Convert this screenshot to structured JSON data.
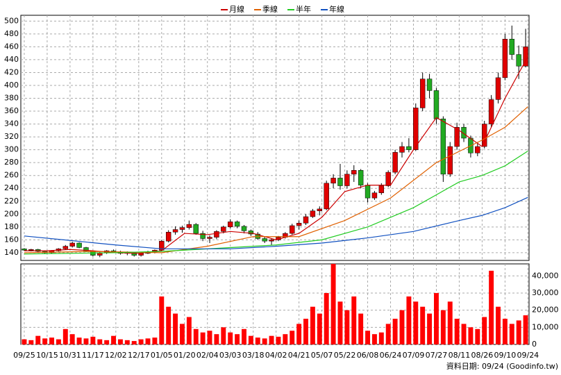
{
  "chart_data": {
    "type": "candlestick",
    "x": [
      0,
      3,
      6,
      9,
      12,
      15,
      18,
      21,
      24,
      27,
      30,
      33,
      36,
      39,
      42,
      45,
      48,
      51,
      54,
      57,
      60,
      63,
      66,
      69,
      72,
      75,
      78,
      81,
      84,
      87,
      90,
      93,
      96,
      99,
      102,
      105,
      108,
      111,
      114,
      117,
      120,
      123,
      126,
      129,
      132,
      135,
      138,
      141,
      144,
      147,
      150,
      153,
      156,
      159,
      162,
      165,
      168,
      171,
      174,
      177,
      180,
      183,
      186,
      189,
      192,
      195,
      198,
      201,
      204,
      207,
      210,
      213,
      216,
      219
    ],
    "ohlc": [
      [
        146,
        147,
        143,
        144
      ],
      [
        144,
        146,
        142,
        145
      ],
      [
        145,
        146,
        141,
        142
      ],
      [
        142,
        143,
        138,
        140
      ],
      [
        140,
        144,
        139,
        143
      ],
      [
        143,
        147,
        142,
        146
      ],
      [
        146,
        152,
        145,
        150
      ],
      [
        150,
        157,
        148,
        155
      ],
      [
        155,
        156,
        147,
        148
      ],
      [
        148,
        149,
        141,
        142
      ],
      [
        142,
        143,
        134,
        136
      ],
      [
        136,
        141,
        133,
        140
      ],
      [
        140,
        144,
        138,
        143
      ],
      [
        143,
        145,
        140,
        141
      ],
      [
        141,
        143,
        137,
        139
      ],
      [
        139,
        142,
        136,
        140
      ],
      [
        140,
        141,
        134,
        136
      ],
      [
        136,
        140,
        134,
        139
      ],
      [
        139,
        143,
        138,
        141
      ],
      [
        141,
        145,
        139,
        144
      ],
      [
        144,
        160,
        143,
        158
      ],
      [
        158,
        175,
        156,
        172
      ],
      [
        172,
        181,
        168,
        176
      ],
      [
        176,
        182,
        171,
        179
      ],
      [
        179,
        190,
        176,
        184
      ],
      [
        184,
        186,
        168,
        170
      ],
      [
        170,
        174,
        158,
        162
      ],
      [
        162,
        167,
        155,
        164
      ],
      [
        164,
        175,
        161,
        173
      ],
      [
        173,
        182,
        170,
        180
      ],
      [
        180,
        192,
        178,
        188
      ],
      [
        188,
        190,
        178,
        181
      ],
      [
        181,
        183,
        170,
        174
      ],
      [
        174,
        176,
        166,
        169
      ],
      [
        169,
        172,
        160,
        162
      ],
      [
        162,
        165,
        155,
        158
      ],
      [
        158,
        162,
        152,
        160
      ],
      [
        160,
        166,
        158,
        164
      ],
      [
        164,
        172,
        162,
        170
      ],
      [
        170,
        185,
        168,
        182
      ],
      [
        182,
        190,
        176,
        186
      ],
      [
        186,
        200,
        183,
        196
      ],
      [
        196,
        208,
        194,
        205
      ],
      [
        205,
        212,
        198,
        208
      ],
      [
        208,
        252,
        206,
        248
      ],
      [
        248,
        262,
        240,
        256
      ],
      [
        256,
        278,
        238,
        244
      ],
      [
        244,
        268,
        240,
        262
      ],
      [
        262,
        276,
        250,
        268
      ],
      [
        268,
        270,
        240,
        245
      ],
      [
        245,
        248,
        218,
        225
      ],
      [
        225,
        236,
        222,
        233
      ],
      [
        233,
        248,
        230,
        244
      ],
      [
        244,
        268,
        242,
        265
      ],
      [
        265,
        300,
        262,
        296
      ],
      [
        296,
        312,
        288,
        305
      ],
      [
        305,
        318,
        296,
        300
      ],
      [
        300,
        372,
        298,
        365
      ],
      [
        365,
        420,
        360,
        410
      ],
      [
        410,
        418,
        380,
        392
      ],
      [
        392,
        396,
        340,
        348
      ],
      [
        348,
        352,
        250,
        262
      ],
      [
        262,
        312,
        258,
        305
      ],
      [
        305,
        342,
        300,
        335
      ],
      [
        335,
        340,
        312,
        318
      ],
      [
        318,
        322,
        288,
        295
      ],
      [
        295,
        312,
        290,
        305
      ],
      [
        305,
        345,
        302,
        340
      ],
      [
        340,
        385,
        335,
        378
      ],
      [
        378,
        420,
        372,
        412
      ],
      [
        412,
        480,
        408,
        472
      ],
      [
        472,
        493,
        440,
        448
      ],
      [
        448,
        462,
        410,
        430
      ],
      [
        430,
        488,
        428,
        460
      ]
    ],
    "up_color": "#e00000",
    "down_color": "#22aa22",
    "volume": [
      3000,
      2500,
      5000,
      3500,
      4000,
      3000,
      9000,
      6000,
      4000,
      3500,
      4500,
      3000,
      2500,
      5000,
      3000,
      2500,
      2000,
      3000,
      3500,
      4000,
      28000,
      22000,
      18000,
      12000,
      16000,
      9000,
      7000,
      8000,
      6000,
      10000,
      7000,
      6000,
      9000,
      5000,
      4000,
      3500,
      5000,
      4500,
      6000,
      8000,
      12000,
      15000,
      22000,
      18000,
      30000,
      47000,
      25000,
      20000,
      28000,
      18000,
      8000,
      6000,
      7000,
      12000,
      15000,
      20000,
      28000,
      25000,
      22000,
      18000,
      30000,
      20000,
      25000,
      15000,
      12000,
      10000,
      9000,
      16000,
      43000,
      22000,
      15000,
      12000,
      14000,
      17000
    ],
    "volume_color": "#ff0000",
    "series": [
      {
        "name": "月線",
        "color": "#cc0000",
        "x": [
          0,
          10,
          20,
          30,
          40,
          50,
          60,
          70,
          80,
          90,
          100,
          110,
          120,
          130,
          140,
          150,
          160,
          170,
          180,
          190,
          200,
          210,
          220
        ],
        "values": [
          143,
          143,
          145,
          143,
          140,
          139,
          143,
          170,
          168,
          173,
          170,
          160,
          170,
          195,
          235,
          245,
          245,
          300,
          350,
          330,
          305,
          380,
          445
        ]
      },
      {
        "name": "季線",
        "color": "#e06000",
        "x": [
          0,
          30,
          60,
          80,
          100,
          120,
          140,
          160,
          180,
          200,
          210,
          220
        ],
        "values": [
          140,
          142,
          140,
          150,
          165,
          165,
          190,
          225,
          280,
          315,
          335,
          367
        ]
      },
      {
        "name": "半年",
        "color": "#22cc22",
        "x": [
          0,
          40,
          60,
          90,
          110,
          130,
          150,
          170,
          190,
          200,
          210,
          220
        ],
        "values": [
          138,
          140,
          142,
          148,
          152,
          160,
          180,
          210,
          250,
          260,
          275,
          298
        ]
      },
      {
        "name": "年線",
        "color": "#1050c0",
        "x": [
          0,
          20,
          40,
          60,
          90,
          110,
          130,
          150,
          170,
          190,
          200,
          210,
          220
        ],
        "values": [
          166,
          159,
          152,
          146,
          146,
          150,
          155,
          163,
          173,
          190,
          198,
          210,
          226
        ]
      }
    ],
    "xlim": [
      -1.5,
      220.5
    ],
    "xticks": [
      {
        "value": 0,
        "label": "09/25"
      },
      {
        "value": 10,
        "label": "10/15"
      },
      {
        "value": 20,
        "label": "10/31"
      },
      {
        "value": 30,
        "label": "11/17"
      },
      {
        "value": 40,
        "label": "12/02"
      },
      {
        "value": 50,
        "label": "12/17"
      },
      {
        "value": 60,
        "label": "01/05"
      },
      {
        "value": 70,
        "label": "01/20"
      },
      {
        "value": 80,
        "label": "02/04"
      },
      {
        "value": 90,
        "label": "03/03"
      },
      {
        "value": 100,
        "label": "03/18"
      },
      {
        "value": 110,
        "label": "04/02"
      },
      {
        "value": 120,
        "label": "04/21"
      },
      {
        "value": 130,
        "label": "05/07"
      },
      {
        "value": 140,
        "label": "05/22"
      },
      {
        "value": 150,
        "label": "06/08"
      },
      {
        "value": 160,
        "label": "06/24"
      },
      {
        "value": 170,
        "label": "07/09"
      },
      {
        "value": 180,
        "label": "07/27"
      },
      {
        "value": 190,
        "label": "08/11"
      },
      {
        "value": 200,
        "label": "08/26"
      },
      {
        "value": 210,
        "label": "09/10"
      },
      {
        "value": 220,
        "label": "09/24"
      }
    ],
    "ylim": [
      128,
      509
    ],
    "yticks": [
      140,
      160,
      180,
      200,
      220,
      240,
      260,
      280,
      300,
      320,
      340,
      360,
      380,
      400,
      420,
      440,
      460,
      480,
      500
    ],
    "volume_ylim": [
      0,
      47000
    ],
    "volume_yticks": [
      0,
      {
        "value": 10000,
        "label": "10,000"
      },
      {
        "value": 20000,
        "label": "20,000"
      },
      {
        "value": 30000,
        "label": "30,000"
      },
      {
        "value": 40000,
        "label": "40,000"
      }
    ],
    "grid": true,
    "source": "資料日期: 09/24  (Goodinfo.tw)"
  }
}
